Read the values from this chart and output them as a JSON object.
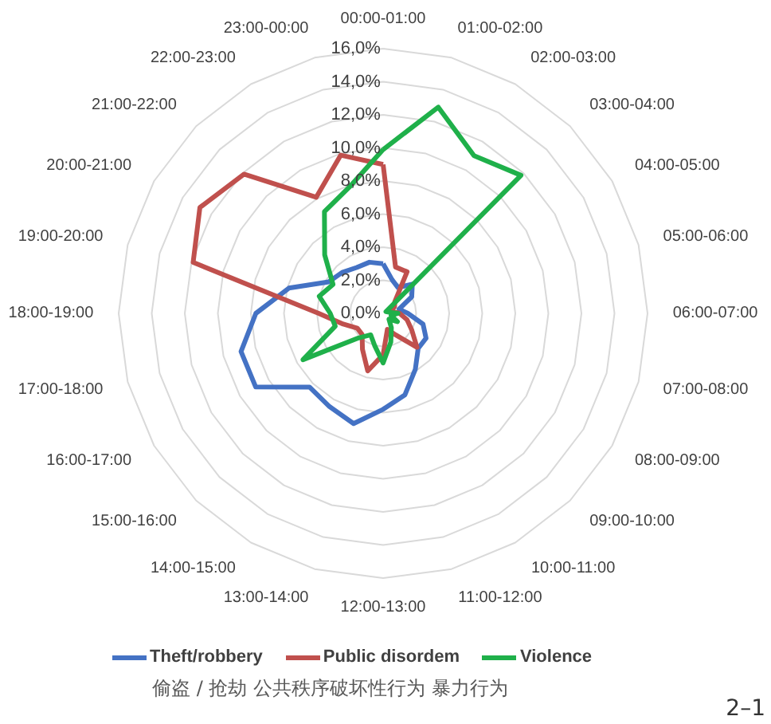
{
  "chart_data": {
    "type": "radar",
    "categories": [
      "00:00-01:00",
      "01:00-02:00",
      "02:00-03:00",
      "03:00-04:00",
      "04:00-05:00",
      "05:00-06:00",
      "06:00-07:00",
      "07:00-08:00",
      "08:00-09:00",
      "09:00-10:00",
      "10:00-11:00",
      "11:00-12:00",
      "12:00-13:00",
      "13:00-14:00",
      "14:00-15:00",
      "15:00-16:00",
      "16:00-17:00",
      "17:00-18:00",
      "18:00-19:00",
      "19:00-20:00",
      "20:00-21:00",
      "21:00-22:00",
      "22:00-23:00",
      "23:00-00:00"
    ],
    "series": [
      {
        "name": "Theft/robbery",
        "color": "#4472c4",
        "values": [
          3.0,
          2.1,
          1.8,
          2.5,
          2.0,
          1.0,
          1.5,
          2.5,
          3.0,
          3.0,
          3.9,
          5.1,
          5.8,
          6.9,
          6.5,
          6.3,
          8.9,
          8.9,
          7.7,
          5.9,
          3.8,
          3.5,
          3.2,
          3.2
        ]
      },
      {
        "name": "Public disordem",
        "color": "#c0504d",
        "values": [
          9.0,
          2.9,
          2.9,
          1.0,
          0.8,
          0.5,
          1.0,
          1.5,
          2.0,
          2.9,
          1.5,
          1.0,
          2.5,
          3.6,
          2.5,
          1.8,
          1.8,
          2.5,
          3.9,
          11.9,
          12.8,
          11.9,
          8.1,
          9.9
        ]
      },
      {
        "name": "Violence",
        "color": "#1fb04a",
        "values": [
          9.9,
          12.9,
          11.0,
          11.8,
          0.2,
          0.3,
          0.9,
          0.5,
          1.0,
          0.5,
          1.0,
          1.8,
          3.0,
          2.0,
          1.5,
          2.1,
          5.6,
          3.0,
          3.2,
          4.0,
          3.5,
          5.0,
          7.1,
          7.9
        ]
      }
    ],
    "ylim": [
      0,
      16
    ],
    "yticks": [
      {
        "value": 0,
        "label": "0,0%"
      },
      {
        "value": 2,
        "label": "2,0%"
      },
      {
        "value": 4,
        "label": "4,0%"
      },
      {
        "value": 6,
        "label": "6,0%"
      },
      {
        "value": 8,
        "label": "8,0%"
      },
      {
        "value": 10,
        "label": "10,0%"
      },
      {
        "value": 12,
        "label": "12,0%"
      },
      {
        "value": 14,
        "label": "14,0%"
      },
      {
        "value": 16,
        "label": "16,0%"
      }
    ],
    "grid": true,
    "legend": "bottom",
    "annotations": [
      "偷盗 / 抢劫   公共秩序破坏性行为   暴力行为",
      "2–1"
    ]
  }
}
